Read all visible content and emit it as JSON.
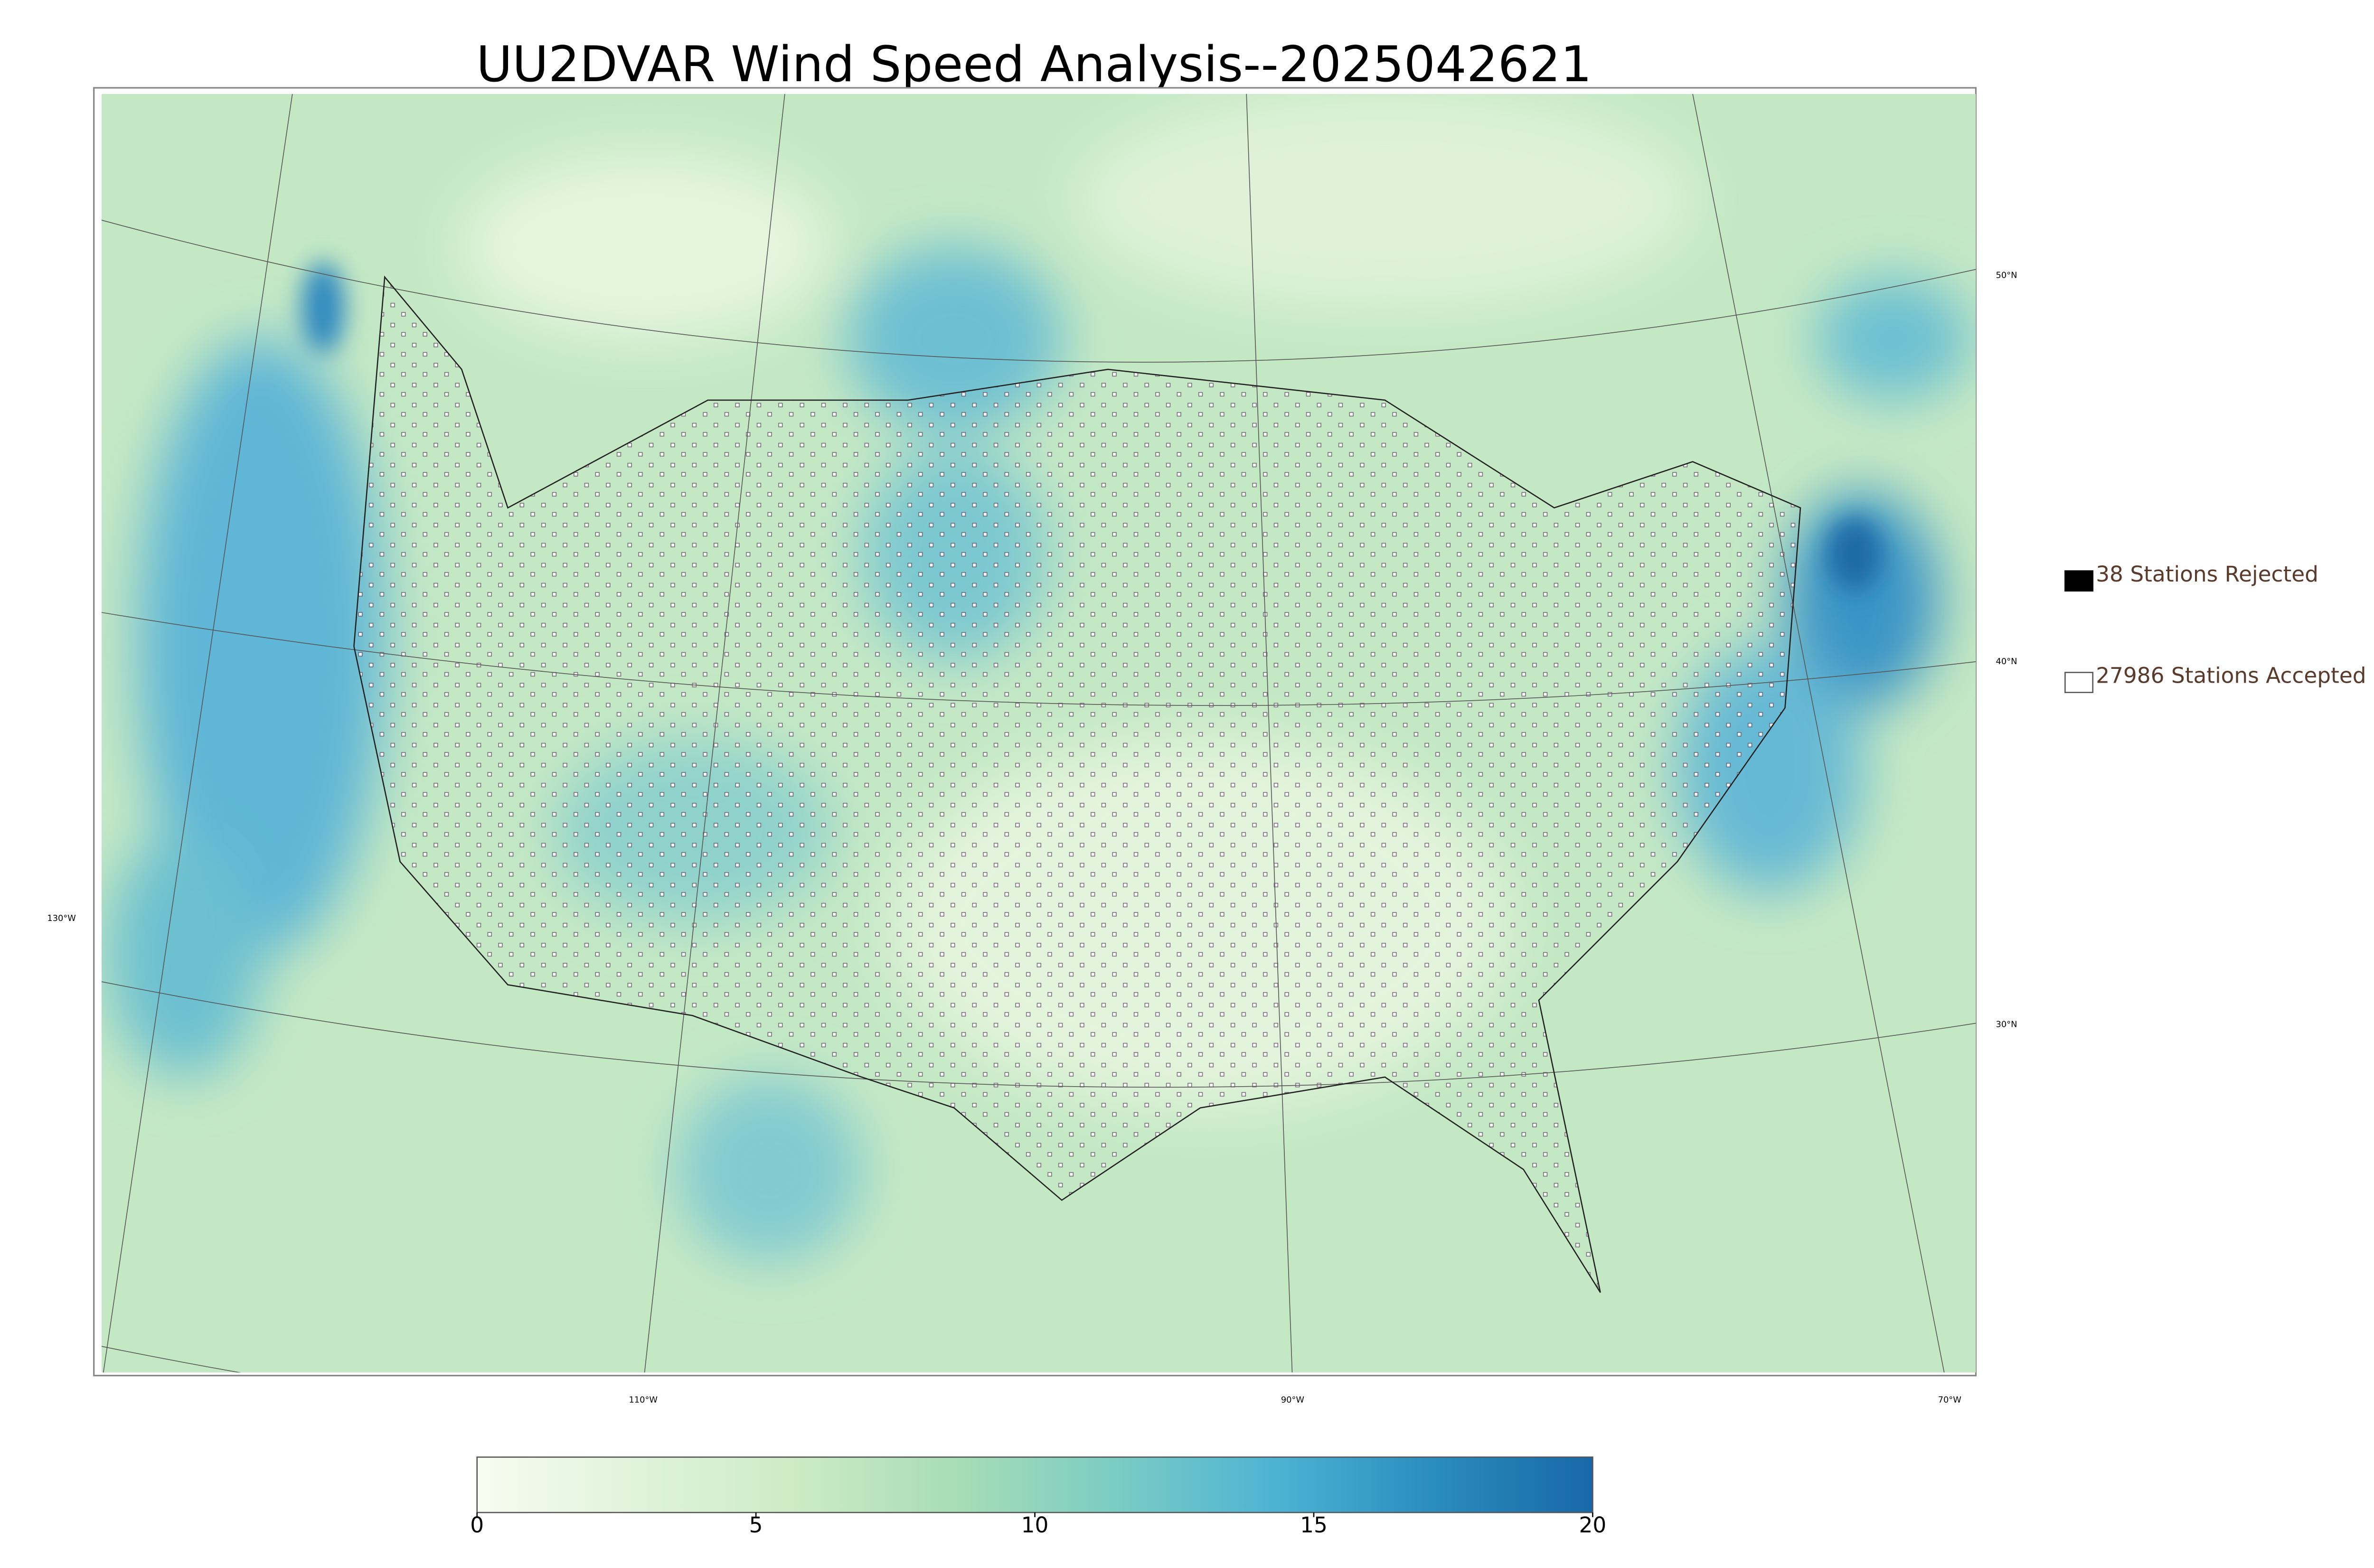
{
  "title": "UU2DVAR Wind Speed Analysis--2025042621",
  "map": {
    "graticule_labels": [
      "50°N",
      "40°N",
      "30°N",
      "130°W",
      "110°W",
      "90°W",
      "70°W"
    ]
  },
  "legend": {
    "items": [
      {
        "label": "38 Stations Rejected",
        "color": "#000000",
        "filled": true
      },
      {
        "label": "27986 Stations Accepted",
        "color": "#ffffff",
        "filled": false
      }
    ]
  },
  "colorbar": {
    "lim": [
      0,
      20
    ],
    "ticks": [
      0,
      5,
      10,
      15,
      20
    ],
    "colors": [
      "#f7fcf0",
      "#e0f3db",
      "#ccebc5",
      "#a8ddb5",
      "#7bccc4",
      "#4eb3d3",
      "#2b8cbe",
      "#1868a8"
    ]
  }
}
